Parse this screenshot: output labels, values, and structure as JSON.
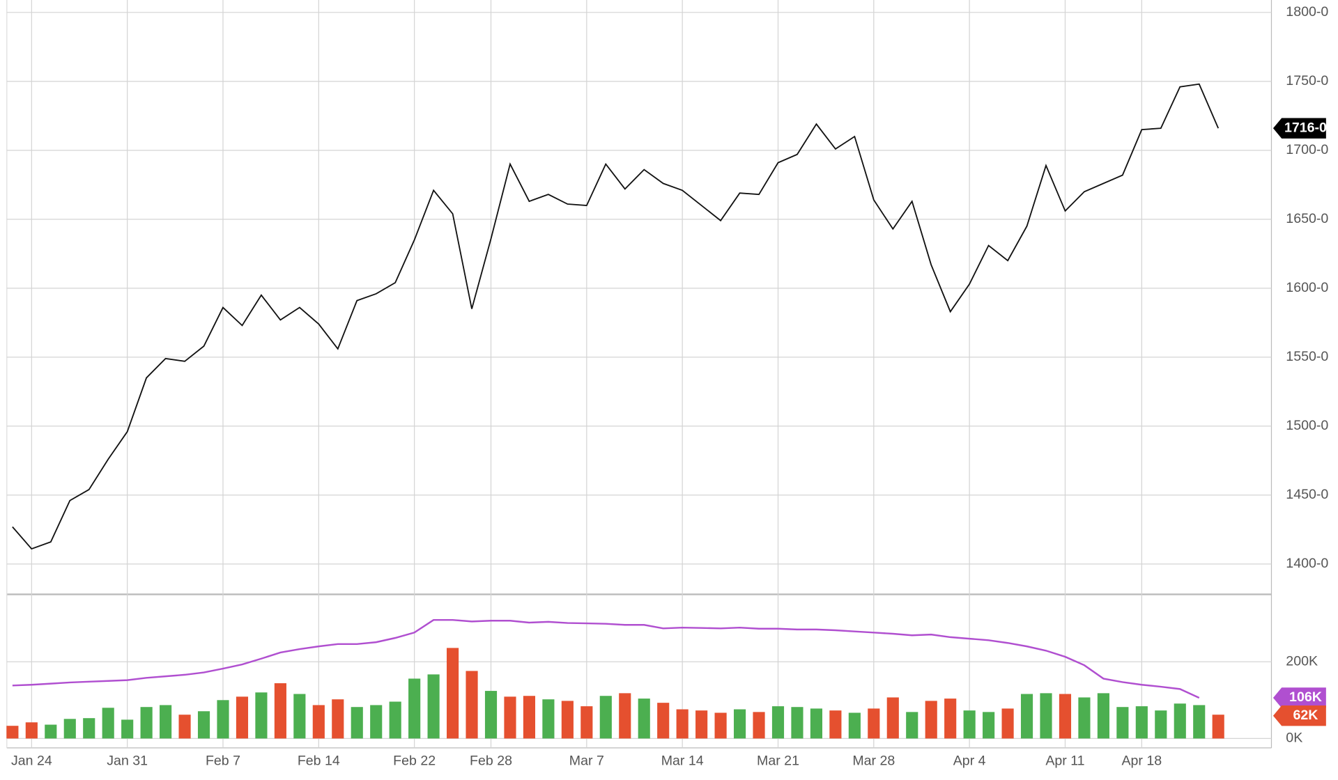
{
  "chart_data": [
    {
      "type": "line",
      "color": "#111111",
      "categories": [
        null,
        "Jan 24",
        null,
        null,
        null,
        null,
        "Jan 31",
        null,
        null,
        null,
        null,
        "Feb 7",
        null,
        null,
        null,
        null,
        "Feb 14",
        null,
        null,
        null,
        null,
        "Feb 22",
        null,
        null,
        null,
        "Feb 28",
        null,
        null,
        null,
        null,
        "Mar 7",
        null,
        null,
        null,
        null,
        "Mar 14",
        null,
        null,
        null,
        null,
        "Mar 21",
        null,
        null,
        null,
        null,
        "Mar 28",
        null,
        null,
        null,
        null,
        "Apr 4",
        null,
        null,
        null,
        null,
        "Apr 11",
        null,
        null,
        null,
        "Apr 18",
        null,
        null,
        null,
        null
      ],
      "values": [
        1427,
        1411,
        1416,
        1446,
        1454,
        1476,
        1496,
        1535,
        1549,
        1547,
        1558,
        1586,
        1573,
        1595,
        1577,
        1586,
        1574,
        1556,
        1591,
        1596,
        1604,
        1635,
        1671,
        1654,
        1585,
        1636,
        1690,
        1663,
        1668,
        1661,
        1660,
        1690,
        1672,
        1686,
        1676,
        1671,
        1660,
        1649,
        1669,
        1668,
        1691,
        1697,
        1719,
        1701,
        1710,
        1664,
        1643,
        1663,
        1617,
        1583,
        1603,
        1631,
        1620,
        1645,
        1689,
        1656,
        1670,
        1676,
        1682,
        1715,
        1716,
        1746,
        1748,
        1716
      ],
      "last_value_label": "1716-0",
      "ylim": [
        1378,
        1809
      ],
      "yticks": [
        {
          "value": 1400,
          "label": "1400-0"
        },
        {
          "value": 1450,
          "label": "1450-0"
        },
        {
          "value": 1500,
          "label": "1500-0"
        },
        {
          "value": 1550,
          "label": "1550-0"
        },
        {
          "value": 1600,
          "label": "1600-0"
        },
        {
          "value": 1650,
          "label": "1650-0"
        },
        {
          "value": 1700,
          "label": "1700-0"
        },
        {
          "value": 1750,
          "label": "1750-0"
        },
        {
          "value": 1800,
          "label": "1800-0"
        }
      ],
      "grid": true
    },
    {
      "type": "bar",
      "series": [
        {
          "values": [
            33,
            42,
            36,
            51,
            53,
            80,
            49,
            82,
            87,
            62,
            71,
            100,
            109,
            120,
            144,
            116,
            87,
            102,
            82,
            87,
            96,
            156,
            167,
            236,
            176,
            124,
            109,
            111,
            102,
            98,
            84,
            111,
            118,
            104,
            93,
            76,
            73,
            67,
            76,
            69,
            84,
            82,
            78,
            73,
            67,
            78,
            107,
            69,
            98,
            104,
            73,
            69,
            78,
            116,
            118,
            116,
            107,
            118,
            82,
            84,
            73,
            91,
            87,
            62
          ],
          "colors": [
            "#e5502f",
            "#e5502f",
            "#4caf50",
            "#4caf50",
            "#4caf50",
            "#4caf50",
            "#4caf50",
            "#4caf50",
            "#4caf50",
            "#e5502f",
            "#4caf50",
            "#4caf50",
            "#e5502f",
            "#4caf50",
            "#e5502f",
            "#4caf50",
            "#e5502f",
            "#e5502f",
            "#4caf50",
            "#4caf50",
            "#4caf50",
            "#4caf50",
            "#4caf50",
            "#e5502f",
            "#e5502f",
            "#4caf50",
            "#e5502f",
            "#e5502f",
            "#4caf50",
            "#e5502f",
            "#e5502f",
            "#4caf50",
            "#e5502f",
            "#4caf50",
            "#e5502f",
            "#e5502f",
            "#e5502f",
            "#e5502f",
            "#4caf50",
            "#e5502f",
            "#4caf50",
            "#4caf50",
            "#4caf50",
            "#e5502f",
            "#4caf50",
            "#e5502f",
            "#e5502f",
            "#4caf50",
            "#e5502f",
            "#e5502f",
            "#4caf50",
            "#4caf50",
            "#e5502f",
            "#4caf50",
            "#4caf50",
            "#e5502f",
            "#4caf50",
            "#4caf50",
            "#4caf50",
            "#4caf50",
            "#4caf50",
            "#4caf50",
            "#4caf50",
            "#e5502f"
          ],
          "last_label": "62K",
          "label_color": "#e5502f"
        },
        {
          "type": "line",
          "color": "#b04fd0",
          "values": [
            138,
            140,
            143,
            146,
            148,
            150,
            152,
            158,
            162,
            166,
            172,
            182,
            193,
            208,
            224,
            233,
            240,
            246,
            246,
            251,
            262,
            276,
            309,
            309,
            305,
            307,
            307,
            302,
            304,
            301,
            300,
            299,
            296,
            296,
            287,
            289,
            288,
            287,
            289,
            286,
            286,
            284,
            284,
            282,
            279,
            276,
            273,
            269,
            271,
            264,
            260,
            256,
            249,
            240,
            229,
            213,
            191,
            156,
            147,
            140,
            135,
            129,
            106,
            null
          ],
          "last_label": "106K"
        }
      ],
      "ylim": [
        0,
        369
      ],
      "yticks": [
        {
          "value": 0,
          "label": "0K"
        },
        {
          "value": 200,
          "label": "200K"
        }
      ]
    }
  ]
}
